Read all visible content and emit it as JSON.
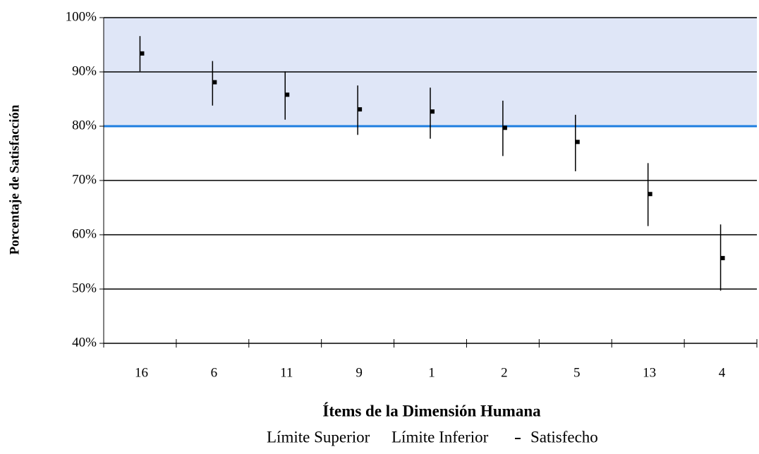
{
  "chart_data": {
    "type": "stock",
    "x_label": "Ítems de la Dimensión Humana",
    "y_label": "Porcentaje de Satisfacción",
    "categories": [
      "16",
      "6",
      "11",
      "9",
      "1",
      "2",
      "5",
      "13",
      "4"
    ],
    "series": [
      {
        "name": "Límite Superior",
        "color": "#000000",
        "values": [
          96.6,
          92.0,
          90.1,
          87.5,
          87.1,
          84.7,
          82.1,
          73.2,
          61.9
        ]
      },
      {
        "name": "Límite Inferior",
        "color": "#000000",
        "values": [
          90.1,
          83.8,
          81.2,
          78.4,
          77.7,
          74.5,
          71.7,
          61.6,
          49.7
        ]
      },
      {
        "name": "Satisfecho",
        "color": "#000000",
        "values": [
          93.4,
          88.1,
          85.8,
          83.1,
          82.7,
          79.7,
          77.1,
          67.5,
          55.7
        ]
      }
    ],
    "ylim": [
      40,
      100
    ],
    "yticks": [
      {
        "value": 40,
        "label": "40%"
      },
      {
        "value": 50,
        "label": "50%"
      },
      {
        "value": 60,
        "label": "60%"
      },
      {
        "value": 70,
        "label": "70%"
      },
      {
        "value": 80,
        "label": "80%"
      },
      {
        "value": 90,
        "label": "90%"
      },
      {
        "value": 100,
        "label": "100%"
      }
    ],
    "grid": true,
    "reference_line": {
      "value": 80,
      "color": "#1e7de0"
    },
    "reference_band": {
      "range": [
        80,
        100
      ],
      "color": "#dfe6f7"
    },
    "legend": "bottom"
  }
}
